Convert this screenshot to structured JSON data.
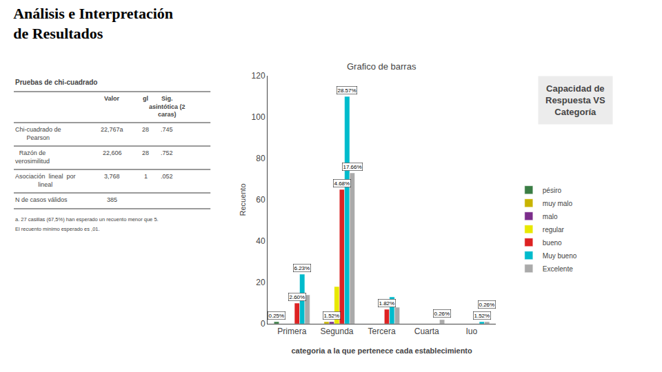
{
  "title": [
    "Análisis e Interpretación",
    "de Resultados"
  ],
  "side_title": "Capacidad de\nRespuesta VS\nCategoría",
  "table": {
    "title": "Pruebas de chi-cuadrado",
    "headers": [
      "",
      "Valor",
      "gl",
      "Sig.\nasintótica (2\ncaras)"
    ],
    "rows": [
      [
        "Chi-cuadrado de\nPearson",
        "22,767a",
        "28",
        ".745"
      ],
      [
        "Razón de\nverosimilitud",
        "22,606",
        "28",
        ".752"
      ],
      [
        "Asociación  lineal  por\nlineal",
        "3,768",
        "1",
        ".052"
      ],
      [
        "N de casos válidos",
        "385",
        "",
        ""
      ]
    ],
    "footnotes": [
      "a. 27 casillas (67,5%) han esperado un recuento menor que 5.",
      "El recuento mínimo esperado es ,01."
    ]
  },
  "chart_data": {
    "type": "bar",
    "title": "Grafico de barras",
    "xlabel": "categoria a la que pertenece cada establecimiento",
    "ylabel": "Recuento",
    "categories": [
      "Primera",
      "Segunda",
      "Tercera",
      "Cuarta",
      "Iuo"
    ],
    "series": [
      {
        "name": "pésiro",
        "color": "#3a7d44",
        "values": [
          1,
          0,
          0,
          0,
          0
        ]
      },
      {
        "name": "muy malo",
        "color": "#c8b400",
        "values": [
          0,
          1,
          0,
          0,
          0
        ]
      },
      {
        "name": "malo",
        "color": "#7b2d8b",
        "values": [
          0,
          1,
          0,
          0,
          0
        ]
      },
      {
        "name": "regular",
        "color": "#e8e800",
        "values": [
          0,
          18,
          0,
          0,
          0
        ]
      },
      {
        "name": "bueno",
        "color": "#dd2222",
        "values": [
          10,
          65,
          7,
          0,
          0
        ]
      },
      {
        "name": "Muy bueno",
        "color": "#00bbcc",
        "values": [
          24,
          110,
          13,
          0,
          1
        ]
      },
      {
        "name": "Excelente",
        "color": "#aaaaaa",
        "values": [
          14,
          73,
          8,
          2,
          1
        ]
      }
    ],
    "annotations": [
      {
        "category": "Primera",
        "series": "pésiro",
        "text": "0.25%"
      },
      {
        "category": "Primera",
        "series": "bueno",
        "text": "2.60%"
      },
      {
        "category": "Primera",
        "series": "Muy bueno",
        "text": "6.23%"
      },
      {
        "category": "Segunda",
        "series": "malo",
        "text": "1.52%"
      },
      {
        "category": "Segunda",
        "series": "bueno",
        "text": "4.68%"
      },
      {
        "category": "Segunda",
        "series": "Muy bueno",
        "text": "28.57%"
      },
      {
        "category": "Segunda",
        "series": "Excelente",
        "text": "17.66%"
      },
      {
        "category": "Tercera",
        "series": "bueno",
        "text": "1.82%"
      },
      {
        "category": "Cuarta",
        "series": "Excelente",
        "text": "0.26%"
      },
      {
        "category": "Iuo",
        "series": "Muy bueno",
        "text": "1.52%"
      },
      {
        "category": "Iuo",
        "series": "Excelente",
        "text": "0.26%"
      }
    ],
    "ylim": [
      0,
      120
    ],
    "yticks": [
      0,
      20,
      40,
      60,
      80,
      100,
      120
    ],
    "grid": false,
    "legend": "right"
  }
}
